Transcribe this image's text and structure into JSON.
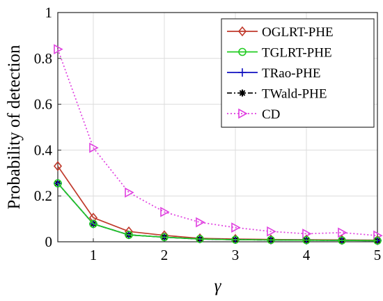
{
  "chart_data": {
    "type": "line",
    "xlabel": "γ",
    "ylabel": "Probability of detection",
    "xlim": [
      0.5,
      5
    ],
    "ylim": [
      0,
      1
    ],
    "xticks": [
      1,
      2,
      3,
      4,
      5
    ],
    "yticks": [
      0,
      0.2,
      0.4,
      0.6,
      0.8,
      1
    ],
    "xtick_labels": [
      "1",
      "2",
      "3",
      "4",
      "5"
    ],
    "ytick_labels": [
      "0",
      "0.2",
      "0.4",
      "0.6",
      "0.8",
      "1"
    ],
    "grid": true,
    "legend_position": "top-right",
    "x": [
      0.5,
      1,
      1.5,
      2,
      2.5,
      3,
      3.5,
      4,
      4.5,
      5
    ],
    "series": [
      {
        "name": "OGLRT-PHE",
        "color": "#c0392b",
        "marker": "diamond",
        "line": "solid",
        "values": [
          0.33,
          0.105,
          0.045,
          0.028,
          0.015,
          0.012,
          0.01,
          0.009,
          0.008,
          0.007
        ]
      },
      {
        "name": "TGLRT-PHE",
        "color": "#22cc22",
        "marker": "circle",
        "line": "solid",
        "values": [
          0.255,
          0.078,
          0.03,
          0.02,
          0.012,
          0.009,
          0.008,
          0.007,
          0.006,
          0.005
        ]
      },
      {
        "name": "TRao-PHE",
        "color": "#1010c0",
        "marker": "plus",
        "line": "solid",
        "values": [
          0.255,
          0.078,
          0.03,
          0.02,
          0.012,
          0.009,
          0.008,
          0.007,
          0.006,
          0.005
        ]
      },
      {
        "name": "TWald-PHE",
        "color": "#000000",
        "marker": "asterisk",
        "line": "dashdot",
        "values": [
          0.255,
          0.078,
          0.03,
          0.02,
          0.012,
          0.009,
          0.008,
          0.007,
          0.006,
          0.005
        ]
      },
      {
        "name": "CD",
        "color": "#e040e0",
        "marker": "triangle-right",
        "line": "dotted",
        "values": [
          0.84,
          0.41,
          0.215,
          0.13,
          0.085,
          0.062,
          0.045,
          0.035,
          0.04,
          0.027
        ]
      }
    ]
  }
}
